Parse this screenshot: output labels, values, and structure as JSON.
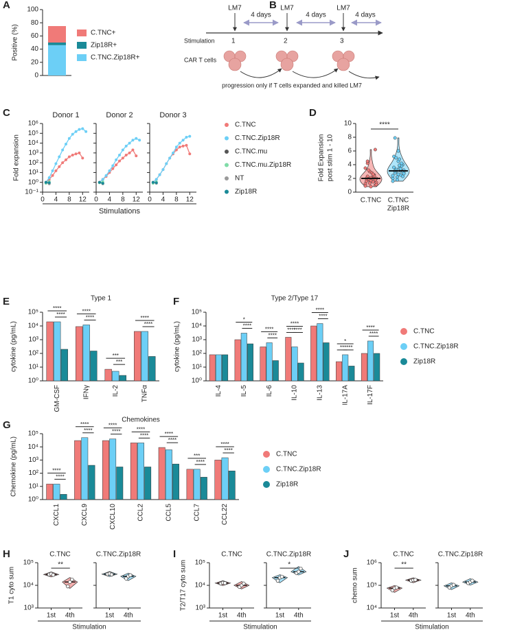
{
  "diagram": {
    "panel_label": "B",
    "markers": [
      "LM7",
      "LM7",
      "LM7"
    ],
    "intervals": [
      "4 days",
      "4 days",
      "4 days"
    ],
    "row_labels": [
      "Stimulation",
      "CAR T cells"
    ],
    "stimulations": [
      "1",
      "2",
      "3"
    ],
    "caption": "progression only if T cells expanded and killed LM7"
  },
  "chart_data": [
    {
      "type": "stacked_bar",
      "panel_label": "A",
      "ylabel": "Positive (%)",
      "ylim": [
        0,
        100
      ],
      "yticks": [
        0,
        20,
        40,
        60,
        80,
        100
      ],
      "series": [
        {
          "name": "C.TNC+",
          "color": "#f07a78",
          "values": [
            25
          ]
        },
        {
          "name": "Zip18R+",
          "color": "#1a8a98",
          "values": [
            4
          ]
        },
        {
          "name": "C.TNC.Zip18R+",
          "color": "#6ccff6",
          "values": [
            46
          ]
        }
      ]
    },
    {
      "type": "line",
      "panel_label": "C",
      "ylabel": "Fold expansion",
      "xlabel": "Stimulations",
      "log_y": true,
      "ylim": [
        0.1,
        1000000
      ],
      "yticks": [
        {
          "value": 0.1,
          "label": "10⁻¹"
        },
        {
          "value": 1,
          "label": "10⁰"
        },
        {
          "value": 10,
          "label": "10¹"
        },
        {
          "value": 100,
          "label": "10²"
        },
        {
          "value": 1000,
          "label": "10³"
        },
        {
          "value": 10000,
          "label": "10⁴"
        },
        {
          "value": 100000,
          "label": "10⁵"
        },
        {
          "value": 1000000,
          "label": "10⁶"
        }
      ],
      "xlim": [
        0,
        14
      ],
      "xticks": [
        0,
        4,
        8,
        12
      ],
      "series": [
        {
          "name": "C.TNC",
          "color": "#f07a78"
        },
        {
          "name": "C.TNC.Zip18R",
          "color": "#6ccff6"
        },
        {
          "name": "C.TNC.mu",
          "color": "#555555"
        },
        {
          "name": "C.TNC.mu.Zip18R",
          "color": "#80dca8"
        },
        {
          "name": "NT",
          "color": "#9a9a9a"
        },
        {
          "name": "Zip18R",
          "color": "#1a8a98"
        }
      ],
      "facets": [
        {
          "title": "Donor 1",
          "lines": [
            {
              "x": [
                1,
                2,
                3,
                4,
                5,
                6,
                7,
                8,
                9,
                10,
                11,
                12
              ],
              "values": [
                1,
                2,
                5,
                15,
                40,
                100,
                200,
                400,
                600,
                800,
                1000,
                300
              ]
            },
            {
              "x": [
                1,
                2,
                3,
                4,
                5,
                6,
                7,
                8,
                9,
                10,
                11,
                12,
                13
              ],
              "values": [
                1,
                3,
                15,
                80,
                400,
                2000,
                8000,
                30000,
                80000,
                150000,
                250000,
                300000,
                150000
              ]
            },
            {
              "x": [
                1,
                2
              ],
              "values": [
                1,
                0.9
              ]
            },
            {
              "x": [
                1,
                2
              ],
              "values": [
                0.8,
                1.2
              ]
            },
            {
              "x": [
                1,
                2
              ],
              "values": [
                1,
                0.7
              ]
            },
            {
              "x": [
                1,
                2
              ],
              "values": [
                1,
                0.9
              ]
            }
          ]
        },
        {
          "title": "Donor 2",
          "lines": [
            {
              "x": [
                1,
                2,
                3,
                4,
                5,
                6,
                7,
                8,
                9,
                10,
                11,
                12
              ],
              "values": [
                1,
                2,
                4,
                10,
                25,
                60,
                150,
                300,
                600,
                1000,
                2000,
                500
              ]
            },
            {
              "x": [
                1,
                2,
                3,
                4,
                5,
                6,
                7,
                8,
                9,
                10,
                11,
                12,
                13
              ],
              "values": [
                1,
                2,
                5,
                15,
                50,
                200,
                600,
                2000,
                5000,
                10000,
                20000,
                30000,
                20000
              ]
            },
            {
              "x": [
                1,
                2
              ],
              "values": [
                1,
                0.8
              ]
            },
            {
              "x": [
                1,
                2
              ],
              "values": [
                0.9,
                1.1
              ]
            },
            {
              "x": [
                1,
                2
              ],
              "values": [
                1,
                0.7
              ]
            },
            {
              "x": [
                1,
                2
              ],
              "values": [
                1,
                0.8
              ]
            }
          ]
        },
        {
          "title": "Donor 3",
          "lines": [
            {
              "x": [
                1,
                2,
                3,
                4,
                5,
                6,
                7,
                8,
                9,
                10,
                11,
                12
              ],
              "values": [
                1,
                2,
                6,
                20,
                80,
                300,
                800,
                2000,
                4000,
                5000,
                6000,
                800
              ]
            },
            {
              "x": [
                1,
                2,
                3,
                4,
                5,
                6,
                7,
                8,
                9,
                10,
                11,
                12
              ],
              "values": [
                1,
                2,
                6,
                20,
                80,
                300,
                1000,
                4000,
                10000,
                20000,
                40000,
                50000
              ]
            },
            {
              "x": [
                1,
                2
              ],
              "values": [
                1,
                0.9
              ]
            },
            {
              "x": [
                1,
                2
              ],
              "values": [
                0.8,
                1.1
              ]
            },
            {
              "x": [
                1,
                2
              ],
              "values": [
                1,
                0.8
              ]
            },
            {
              "x": [
                1,
                2
              ],
              "values": [
                1,
                0.9
              ]
            }
          ]
        }
      ]
    },
    {
      "type": "violin",
      "panel_label": "D",
      "ylabel": [
        "Fold Expansion",
        "post stim 1 - 10"
      ],
      "ylim": [
        0,
        10
      ],
      "yticks": [
        0,
        2,
        4,
        6,
        8,
        10
      ],
      "categories": [
        [
          "C.TNC"
        ],
        [
          "C.TNC",
          "Zip18R"
        ]
      ],
      "colors": [
        "#f07a78",
        "#6ccff6"
      ],
      "points": [
        [
          1.2,
          1.5,
          1.8,
          2.0,
          2.1,
          2.3,
          1.0,
          0.8,
          1.6,
          2.5,
          3.0,
          3.5,
          2.2,
          1.9,
          1.4,
          2.8,
          4.2,
          6.2,
          1.7,
          2.0,
          2.4,
          1.3,
          0.9,
          2.6,
          3.2,
          1.1,
          2.0,
          4.5,
          1.8,
          2.1
        ],
        [
          2.0,
          2.5,
          3.0,
          3.2,
          3.5,
          2.8,
          4.0,
          4.5,
          5.2,
          3.8,
          2.2,
          1.6,
          3.1,
          3.3,
          2.9,
          4.8,
          7.9,
          3.0,
          2.6,
          3.6,
          4.2,
          1.8,
          2.4,
          3.4,
          5.0,
          2.7,
          3.9,
          3.1,
          2.3,
          6.0
        ]
      ],
      "medians": [
        2.0,
        3.1
      ],
      "significance": "****"
    },
    {
      "type": "bar",
      "panel_label": "E",
      "title": "Type 1",
      "ylabel": "cytokine (pg/mL)",
      "log_y": true,
      "ylim": [
        1,
        100000
      ],
      "yticks": [
        {
          "value": 1,
          "label": "10⁰"
        },
        {
          "value": 10,
          "label": "10¹"
        },
        {
          "value": 100,
          "label": "10²"
        },
        {
          "value": 1000,
          "label": "10³"
        },
        {
          "value": 10000,
          "label": "10⁴"
        },
        {
          "value": 100000,
          "label": "10⁵"
        }
      ],
      "categories": [
        "GM-CSF",
        "IFNγ",
        "IL-2",
        "TNFα"
      ],
      "legend": false,
      "series": [
        {
          "color": "#f07a78",
          "values": [
            20000,
            9000,
            7,
            4000
          ]
        },
        {
          "color": "#6ccff6",
          "values": [
            20000,
            12000,
            5,
            4000
          ]
        },
        {
          "color": "#1a8a98",
          "values": [
            200,
            150,
            2.5,
            60
          ]
        }
      ],
      "significance": [
        [
          "****",
          "****"
        ],
        [
          "****",
          "****"
        ],
        [
          "***",
          "***"
        ],
        [
          "****",
          "****"
        ]
      ]
    },
    {
      "type": "bar",
      "panel_label": "F",
      "title": "Type 2/Type 17",
      "ylabel": "cytokine (pg/mL)",
      "log_y": true,
      "ylim": [
        1,
        100000
      ],
      "yticks": [
        {
          "value": 1,
          "label": "10⁰"
        },
        {
          "value": 10,
          "label": "10¹"
        },
        {
          "value": 100,
          "label": "10²"
        },
        {
          "value": 1000,
          "label": "10³"
        },
        {
          "value": 10000,
          "label": "10⁴"
        },
        {
          "value": 100000,
          "label": "10⁵"
        }
      ],
      "categories": [
        "IL-4",
        "IL-5",
        "IL-6",
        "IL-10",
        "IL-13",
        "IL-17A",
        "IL-17F"
      ],
      "legend": true,
      "series": [
        {
          "name": "C.TNC",
          "color": "#f07a78",
          "values": [
            80,
            1000,
            300,
            1500,
            10000,
            25,
            100
          ]
        },
        {
          "name": "C.TNC.Zip18R",
          "color": "#6ccff6",
          "values": [
            80,
            3000,
            600,
            300,
            15000,
            80,
            800
          ]
        },
        {
          "name": "Zip18R",
          "color": "#1a8a98",
          "values": [
            80,
            500,
            30,
            20,
            600,
            12,
            100
          ]
        }
      ],
      "significance": [
        [],
        [
          "*",
          "****"
        ],
        [
          "****",
          "****"
        ],
        [
          "****",
          "****",
          "****"
        ],
        [
          "****",
          "****"
        ],
        [
          "*",
          "**",
          "****"
        ],
        [
          "****",
          "****"
        ]
      ]
    },
    {
      "type": "bar",
      "panel_label": "G",
      "title": "Chemokines",
      "ylabel": "Chemokine (pg/mL)",
      "log_y": true,
      "ylim": [
        1,
        100000
      ],
      "yticks": [
        {
          "value": 1,
          "label": "10⁰"
        },
        {
          "value": 10,
          "label": "10¹"
        },
        {
          "value": 100,
          "label": "10²"
        },
        {
          "value": 1000,
          "label": "10³"
        },
        {
          "value": 10000,
          "label": "10⁴"
        },
        {
          "value": 100000,
          "label": "10⁵"
        }
      ],
      "categories": [
        "CXCL1",
        "CXCL9",
        "CXCL10",
        "CCL2",
        "CCL5",
        "CCL7",
        "CCL22"
      ],
      "legend": true,
      "series": [
        {
          "name": "C.TNC",
          "color": "#f07a78",
          "values": [
            15,
            30000,
            30000,
            20000,
            9000,
            200,
            1000
          ]
        },
        {
          "name": "C.TNC.Zip18R",
          "color": "#6ccff6",
          "values": [
            15,
            50000,
            40000,
            20000,
            6000,
            200,
            1500
          ]
        },
        {
          "name": "Zip18R",
          "color": "#1a8a98",
          "values": [
            2.5,
            400,
            300,
            300,
            500,
            50,
            150
          ]
        }
      ],
      "significance": [
        [
          "****",
          "****"
        ],
        [
          "****",
          "****"
        ],
        [
          "****",
          "****"
        ],
        [
          "****",
          "****"
        ],
        [
          "****",
          "****"
        ],
        [
          "***",
          "****"
        ],
        [
          "****",
          "****"
        ]
      ]
    },
    {
      "type": "violin_pair",
      "panel_label": "H",
      "ylabel": "T1 cyto sum",
      "xlabel": "Stimulation",
      "log_y": true,
      "ylim": [
        1000,
        100000
      ],
      "yticks": [
        {
          "value": 1000,
          "label": "10³"
        },
        {
          "value": 10000,
          "label": "10⁴"
        },
        {
          "value": 100000,
          "label": "10⁵"
        }
      ],
      "categories": [
        "1st",
        "4th"
      ],
      "facets": [
        {
          "title": "C.TNC",
          "color": "#f07a78",
          "points": [
            [
              30000,
              32000,
              29000
            ],
            [
              9000,
              14000,
              18000
            ]
          ],
          "significance": "**"
        },
        {
          "title": "C.TNC.Zip18R",
          "color": "#6ccff6",
          "points": [
            [
              31000,
              33000,
              30000
            ],
            [
              20000,
              25000,
              28000
            ]
          ]
        }
      ]
    },
    {
      "type": "violin_pair",
      "panel_label": "I",
      "ylabel": "T2/T17 cyto sum",
      "xlabel": "Stimulation",
      "log_y": true,
      "ylim": [
        1000,
        100000
      ],
      "yticks": [
        {
          "value": 1000,
          "label": "10³"
        },
        {
          "value": 10000,
          "label": "10⁴"
        },
        {
          "value": 100000,
          "label": "10⁵"
        }
      ],
      "categories": [
        "1st",
        "4th"
      ],
      "facets": [
        {
          "title": "C.TNC",
          "color": "#f07a78",
          "points": [
            [
              12000,
              13000,
              12500
            ],
            [
              8500,
              10000,
              12000
            ]
          ]
        },
        {
          "title": "C.TNC.Zip18R",
          "color": "#6ccff6",
          "points": [
            [
              16000,
              22000,
              24000
            ],
            [
              35000,
              40000,
              55000
            ]
          ],
          "significance": "*"
        }
      ]
    },
    {
      "type": "violin_pair",
      "panel_label": "J",
      "ylabel": "chemo sum",
      "xlabel": "Stimulation",
      "log_y": true,
      "ylim": [
        10000,
        1000000
      ],
      "yticks": [
        {
          "value": 10000,
          "label": "10⁴"
        },
        {
          "value": 100000,
          "label": "10⁵"
        },
        {
          "value": 1000000,
          "label": "10⁶"
        }
      ],
      "categories": [
        "1st",
        "4th"
      ],
      "facets": [
        {
          "title": "C.TNC",
          "color": "#f07a78",
          "points": [
            [
              60000,
              75000,
              80000
            ],
            [
              160000,
              170000,
              175000
            ]
          ],
          "significance": "**"
        },
        {
          "title": "C.TNC.Zip18R",
          "color": "#6ccff6",
          "points": [
            [
              80000,
              95000,
              105000
            ],
            [
              125000,
              140000,
              160000
            ]
          ]
        }
      ]
    }
  ]
}
